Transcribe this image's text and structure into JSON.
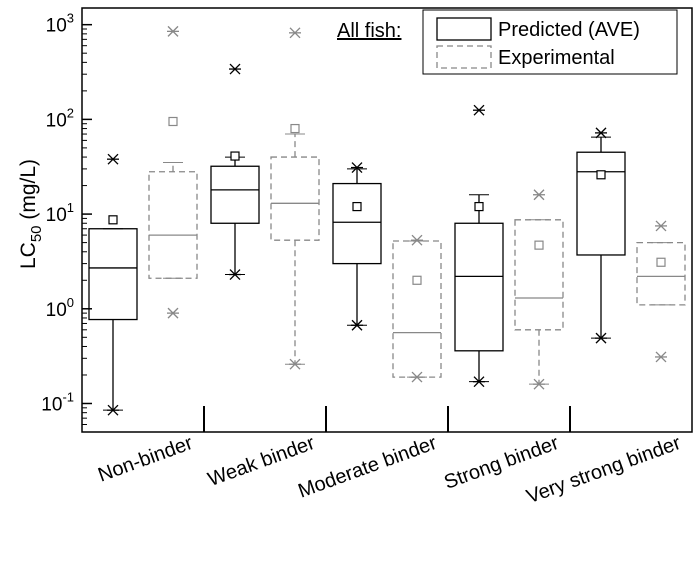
{
  "chart_data": {
    "type": "box",
    "ylabel": {
      "main": "LC",
      "sub": "50",
      "unit": " (mg/L)"
    },
    "yscale": "log",
    "ylim": [
      0.05,
      1500
    ],
    "yticks": [
      {
        "value": 0.1,
        "base": "10",
        "exp": "-1"
      },
      {
        "value": 1,
        "base": "10",
        "exp": "0"
      },
      {
        "value": 10,
        "base": "10",
        "exp": "1"
      },
      {
        "value": 100,
        "base": "10",
        "exp": "2"
      },
      {
        "value": 1000,
        "base": "10",
        "exp": "3"
      }
    ],
    "categories": [
      "Non-binder",
      "Weak binder",
      "Moderate binder",
      "Strong binder",
      "Very strong binder"
    ],
    "legend": {
      "title": "All fish:",
      "entries": [
        {
          "label": "Predicted (AVE)",
          "style": "solid",
          "color": "#000000"
        },
        {
          "label": "Experimental",
          "style": "dashed",
          "color": "#888888"
        }
      ]
    },
    "series": [
      {
        "name": "Predicted (AVE)",
        "color": "#000000",
        "dash": "",
        "boxes": [
          {
            "category": "Non-binder",
            "min": 0.085,
            "q1": 0.77,
            "median": 2.7,
            "q3": 7.0,
            "max": 7.0,
            "whisker_low": 0.085,
            "whisker_high": 7.0,
            "mean": 8.7,
            "outliers": [
              0.085,
              38
            ]
          },
          {
            "category": "Weak binder",
            "min": 2.3,
            "q1": 8.0,
            "median": 18,
            "q3": 32,
            "max": 40,
            "whisker_low": 2.3,
            "whisker_high": 40,
            "mean": 41,
            "outliers": [
              2.3,
              340
            ]
          },
          {
            "category": "Moderate binder",
            "min": 0.67,
            "q1": 3.0,
            "median": 8.2,
            "q3": 21,
            "max": 30,
            "whisker_low": 0.67,
            "whisker_high": 30,
            "mean": 12,
            "outliers": [
              0.67,
              31
            ]
          },
          {
            "category": "Strong binder",
            "min": 0.17,
            "q1": 0.36,
            "median": 2.2,
            "q3": 8.0,
            "max": 16,
            "whisker_low": 0.17,
            "whisker_high": 16,
            "mean": 12,
            "outliers": [
              0.17,
              125
            ]
          },
          {
            "category": "Very strong binder",
            "min": 0.49,
            "q1": 3.7,
            "median": 28,
            "q3": 45,
            "max": 65,
            "whisker_low": 0.49,
            "whisker_high": 65,
            "mean": 26,
            "outliers": [
              0.49,
              72
            ]
          }
        ]
      },
      {
        "name": "Experimental",
        "color": "#888888",
        "dash": "6,4",
        "boxes": [
          {
            "category": "Non-binder",
            "min": 0.9,
            "q1": 2.1,
            "median": 6.0,
            "q3": 28,
            "max": 35,
            "whisker_low": 2.1,
            "whisker_high": 35,
            "mean": 95,
            "outliers": [
              0.9,
              850
            ]
          },
          {
            "category": "Weak binder",
            "min": 0.26,
            "q1": 5.3,
            "median": 13,
            "q3": 40,
            "max": 70,
            "whisker_low": 0.26,
            "whisker_high": 70,
            "mean": 80,
            "outliers": [
              0.26,
              820
            ]
          },
          {
            "category": "Moderate binder",
            "min": 0.19,
            "q1": 0.19,
            "median": 0.56,
            "q3": 5.2,
            "max": 5.2,
            "whisker_low": 0.19,
            "whisker_high": 5.2,
            "mean": 2.0,
            "outliers": [
              0.19,
              5.3
            ]
          },
          {
            "category": "Strong binder",
            "min": 0.16,
            "q1": 0.6,
            "median": 1.3,
            "q3": 8.7,
            "max": 16,
            "whisker_low": 0.16,
            "whisker_high": 8.7,
            "mean": 4.7,
            "outliers": [
              0.16,
              16
            ]
          },
          {
            "category": "Very strong binder",
            "min": 0.31,
            "q1": 1.1,
            "median": 2.2,
            "q3": 5.0,
            "max": 5.0,
            "whisker_low": 1.1,
            "whisker_high": 5.0,
            "mean": 3.1,
            "outliers": [
              0.31,
              7.5
            ]
          }
        ]
      }
    ]
  }
}
